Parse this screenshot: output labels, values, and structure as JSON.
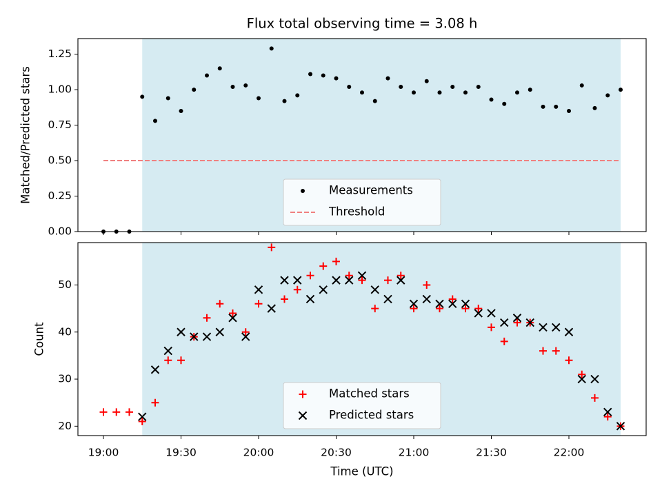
{
  "chart_data": [
    {
      "type": "scatter",
      "title": "Flux total observing time = 3.08 h",
      "ylabel": "Matched/Predicted stars",
      "xlabel": "",
      "ylim": [
        0,
        1.36
      ],
      "yticks": [
        "0.00",
        "0.25",
        "0.50",
        "0.75",
        "1.00",
        "1.25"
      ],
      "legend_position": "bottom-center",
      "highlight_span": [
        "19:15",
        "22:20"
      ],
      "series": [
        {
          "name": "Measurements",
          "marker": "dot",
          "color": "#000000",
          "x": [
            "19:00",
            "19:05",
            "19:10",
            "19:15",
            "19:20",
            "19:25",
            "19:30",
            "19:35",
            "19:40",
            "19:45",
            "19:50",
            "19:55",
            "20:00",
            "20:05",
            "20:10",
            "20:15",
            "20:20",
            "20:25",
            "20:30",
            "20:35",
            "20:40",
            "20:45",
            "20:50",
            "20:55",
            "21:00",
            "21:05",
            "21:10",
            "21:15",
            "21:20",
            "21:25",
            "21:30",
            "21:35",
            "21:40",
            "21:45",
            "21:50",
            "21:55",
            "22:00",
            "22:05",
            "22:10",
            "22:15",
            "22:20"
          ],
          "y": [
            0,
            0,
            0,
            0.95,
            0.78,
            0.94,
            0.85,
            1.0,
            1.1,
            1.15,
            1.02,
            1.03,
            0.94,
            1.29,
            0.92,
            0.96,
            1.11,
            1.1,
            1.08,
            1.02,
            0.98,
            0.92,
            1.08,
            1.02,
            0.98,
            1.06,
            0.98,
            1.02,
            0.98,
            1.02,
            0.93,
            0.9,
            0.98,
            1.0,
            0.88,
            0.88,
            0.85,
            1.03,
            0.87,
            0.96,
            1.0
          ]
        },
        {
          "name": "Threshold",
          "marker": "dashed-line",
          "color": "#f08080",
          "x": [
            "19:00",
            "22:20"
          ],
          "y": [
            0.5,
            0.5
          ]
        }
      ]
    },
    {
      "type": "scatter",
      "title": "",
      "ylabel": "Count",
      "xlabel": "Time (UTC)",
      "ylim": [
        18,
        59
      ],
      "yticks": [
        "20",
        "30",
        "40",
        "50"
      ],
      "xticks": [
        "19:00",
        "19:30",
        "20:00",
        "20:30",
        "21:00",
        "21:30",
        "22:00"
      ],
      "legend_position": "bottom-center",
      "highlight_span": [
        "19:15",
        "22:20"
      ],
      "series": [
        {
          "name": "Matched stars",
          "marker": "plus",
          "color": "#ff0000",
          "x": [
            "19:00",
            "19:05",
            "19:10",
            "19:15",
            "19:20",
            "19:25",
            "19:30",
            "19:35",
            "19:40",
            "19:45",
            "19:50",
            "19:55",
            "20:00",
            "20:05",
            "20:10",
            "20:15",
            "20:20",
            "20:25",
            "20:30",
            "20:35",
            "20:40",
            "20:45",
            "20:50",
            "20:55",
            "21:00",
            "21:05",
            "21:10",
            "21:15",
            "21:20",
            "21:25",
            "21:30",
            "21:35",
            "21:40",
            "21:45",
            "21:50",
            "21:55",
            "22:00",
            "22:05",
            "22:10",
            "22:15",
            "22:20"
          ],
          "y": [
            23,
            23,
            23,
            21,
            25,
            34,
            34,
            39,
            43,
            46,
            44,
            40,
            46,
            58,
            47,
            49,
            52,
            54,
            55,
            52,
            51,
            45,
            51,
            52,
            45,
            50,
            45,
            47,
            45,
            45,
            41,
            38,
            42,
            42,
            36,
            36,
            34,
            31,
            26,
            22,
            20
          ]
        },
        {
          "name": "Predicted stars",
          "marker": "x",
          "color": "#000000",
          "x": [
            "19:15",
            "19:20",
            "19:25",
            "19:30",
            "19:35",
            "19:40",
            "19:45",
            "19:50",
            "19:55",
            "20:00",
            "20:05",
            "20:10",
            "20:15",
            "20:20",
            "20:25",
            "20:30",
            "20:35",
            "20:40",
            "20:45",
            "20:50",
            "20:55",
            "21:00",
            "21:05",
            "21:10",
            "21:15",
            "21:20",
            "21:25",
            "21:30",
            "21:35",
            "21:40",
            "21:45",
            "21:50",
            "21:55",
            "22:00",
            "22:05",
            "22:10",
            "22:15",
            "22:20"
          ],
          "y": [
            22,
            32,
            36,
            40,
            39,
            39,
            40,
            43,
            39,
            49,
            45,
            51,
            51,
            47,
            49,
            51,
            51,
            52,
            49,
            47,
            51,
            46,
            47,
            46,
            46,
            46,
            44,
            44,
            42,
            43,
            42,
            41,
            41,
            40,
            30,
            30,
            23,
            20
          ]
        }
      ]
    }
  ]
}
